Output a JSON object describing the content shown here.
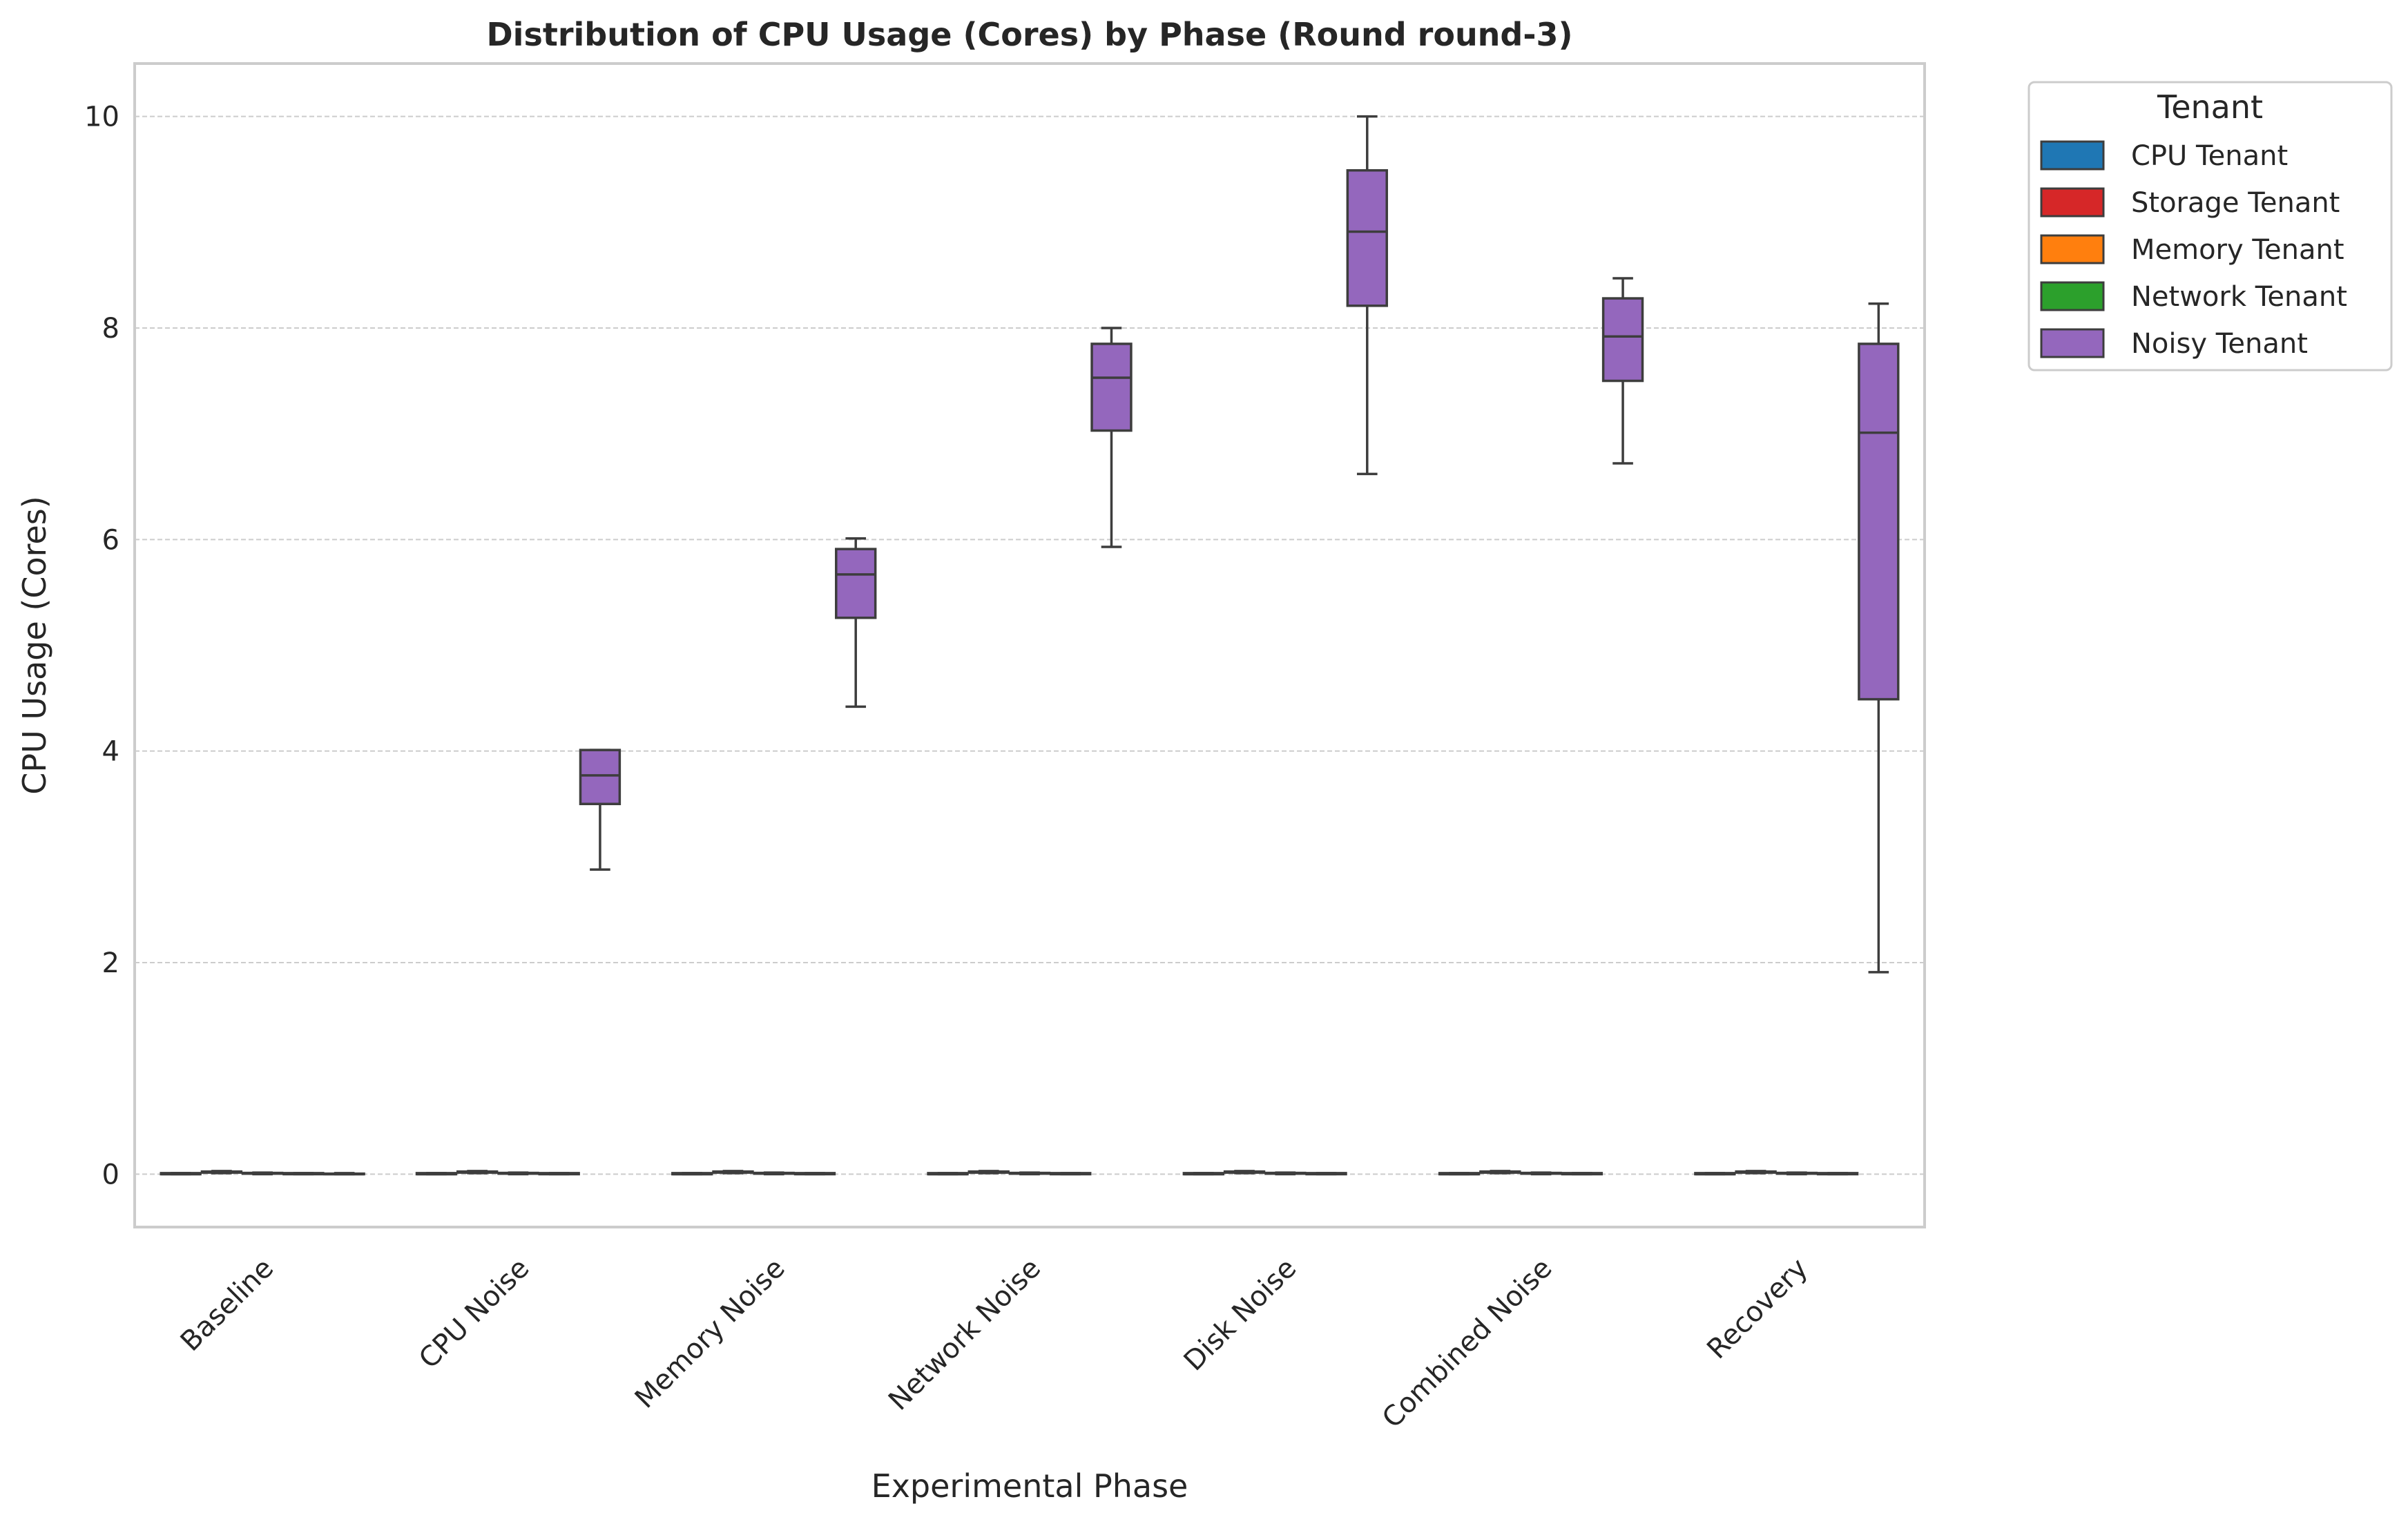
{
  "chart_data": {
    "type": "box",
    "title": "Distribution of CPU Usage (Cores) by Phase (Round round-3)",
    "xlabel": "Experimental Phase",
    "ylabel": "CPU Usage (Cores)",
    "ylim": [
      -0.5,
      10.5
    ],
    "yticks": [
      "0",
      "2",
      "4",
      "6",
      "8",
      "10"
    ],
    "ytick_values": [
      0,
      2,
      4,
      6,
      8,
      10
    ],
    "grid": true,
    "categories": [
      "Baseline",
      "CPU Noise",
      "Memory Noise",
      "Network Noise",
      "Disk Noise",
      "Combined Noise",
      "Recovery"
    ],
    "legend": {
      "title": "Tenant",
      "placement": "outside-top-right"
    },
    "series": [
      {
        "name": "CPU Tenant",
        "color": "#1f77b4",
        "boxes": [
          {
            "min": 0,
            "q1": 0,
            "median": 0,
            "q3": 0.01,
            "max": 0.01
          },
          {
            "min": 0,
            "q1": 0,
            "median": 0,
            "q3": 0.01,
            "max": 0.01
          },
          {
            "min": 0,
            "q1": 0,
            "median": 0,
            "q3": 0.01,
            "max": 0.01
          },
          {
            "min": 0,
            "q1": 0,
            "median": 0,
            "q3": 0.01,
            "max": 0.01
          },
          {
            "min": 0,
            "q1": 0,
            "median": 0,
            "q3": 0.01,
            "max": 0.01
          },
          {
            "min": 0,
            "q1": 0,
            "median": 0,
            "q3": 0.01,
            "max": 0.01
          },
          {
            "min": 0,
            "q1": 0,
            "median": 0,
            "q3": 0.01,
            "max": 0.01
          }
        ]
      },
      {
        "name": "Storage Tenant",
        "color": "#d62728",
        "boxes": [
          {
            "min": 0.01,
            "q1": 0.015,
            "median": 0.02,
            "q3": 0.025,
            "max": 0.03
          },
          {
            "min": 0.01,
            "q1": 0.015,
            "median": 0.02,
            "q3": 0.025,
            "max": 0.03
          },
          {
            "min": 0.01,
            "q1": 0.015,
            "median": 0.02,
            "q3": 0.025,
            "max": 0.03
          },
          {
            "min": 0.01,
            "q1": 0.015,
            "median": 0.02,
            "q3": 0.025,
            "max": 0.03
          },
          {
            "min": 0.01,
            "q1": 0.015,
            "median": 0.02,
            "q3": 0.025,
            "max": 0.03
          },
          {
            "min": 0.01,
            "q1": 0.015,
            "median": 0.02,
            "q3": 0.025,
            "max": 0.03
          },
          {
            "min": 0.01,
            "q1": 0.015,
            "median": 0.02,
            "q3": 0.025,
            "max": 0.03
          }
        ]
      },
      {
        "name": "Memory Tenant",
        "color": "#ff7f0e",
        "boxes": [
          {
            "min": 0,
            "q1": 0.005,
            "median": 0.01,
            "q3": 0.012,
            "max": 0.015
          },
          {
            "min": 0,
            "q1": 0.005,
            "median": 0.01,
            "q3": 0.012,
            "max": 0.015
          },
          {
            "min": 0,
            "q1": 0.005,
            "median": 0.01,
            "q3": 0.012,
            "max": 0.015
          },
          {
            "min": 0,
            "q1": 0.005,
            "median": 0.01,
            "q3": 0.012,
            "max": 0.015
          },
          {
            "min": 0,
            "q1": 0.005,
            "median": 0.01,
            "q3": 0.012,
            "max": 0.015
          },
          {
            "min": 0,
            "q1": 0.005,
            "median": 0.01,
            "q3": 0.012,
            "max": 0.015
          },
          {
            "min": 0,
            "q1": 0.005,
            "median": 0.01,
            "q3": 0.012,
            "max": 0.015
          }
        ]
      },
      {
        "name": "Network Tenant",
        "color": "#2ca02c",
        "boxes": [
          {
            "min": 0,
            "q1": 0,
            "median": 0.005,
            "q3": 0.01,
            "max": 0.01
          },
          {
            "min": 0,
            "q1": 0,
            "median": 0.005,
            "q3": 0.01,
            "max": 0.01
          },
          {
            "min": 0,
            "q1": 0,
            "median": 0.005,
            "q3": 0.01,
            "max": 0.01
          },
          {
            "min": 0,
            "q1": 0,
            "median": 0.005,
            "q3": 0.01,
            "max": 0.01
          },
          {
            "min": 0,
            "q1": 0,
            "median": 0.005,
            "q3": 0.01,
            "max": 0.01
          },
          {
            "min": 0,
            "q1": 0,
            "median": 0.005,
            "q3": 0.01,
            "max": 0.01
          },
          {
            "min": 0,
            "q1": 0,
            "median": 0.005,
            "q3": 0.01,
            "max": 0.01
          }
        ]
      },
      {
        "name": "Noisy Tenant",
        "color": "#9467bd",
        "boxes": [
          {
            "min": 0,
            "q1": 0,
            "median": 0,
            "q3": 0.005,
            "max": 0.01
          },
          {
            "min": 2.88,
            "q1": 3.5,
            "median": 3.77,
            "q3": 4.01,
            "max": 4.01
          },
          {
            "min": 4.42,
            "q1": 5.26,
            "median": 5.67,
            "q3": 5.91,
            "max": 6.01
          },
          {
            "min": 5.93,
            "q1": 7.03,
            "median": 7.53,
            "q3": 7.85,
            "max": 8.0
          },
          {
            "min": 6.62,
            "q1": 8.21,
            "median": 8.91,
            "q3": 9.49,
            "max": 10.0
          },
          {
            "min": 6.72,
            "q1": 7.5,
            "median": 7.92,
            "q3": 8.28,
            "max": 8.47
          },
          {
            "min": 1.91,
            "q1": 4.49,
            "median": 7.01,
            "q3": 7.85,
            "max": 8.23
          }
        ]
      }
    ]
  }
}
